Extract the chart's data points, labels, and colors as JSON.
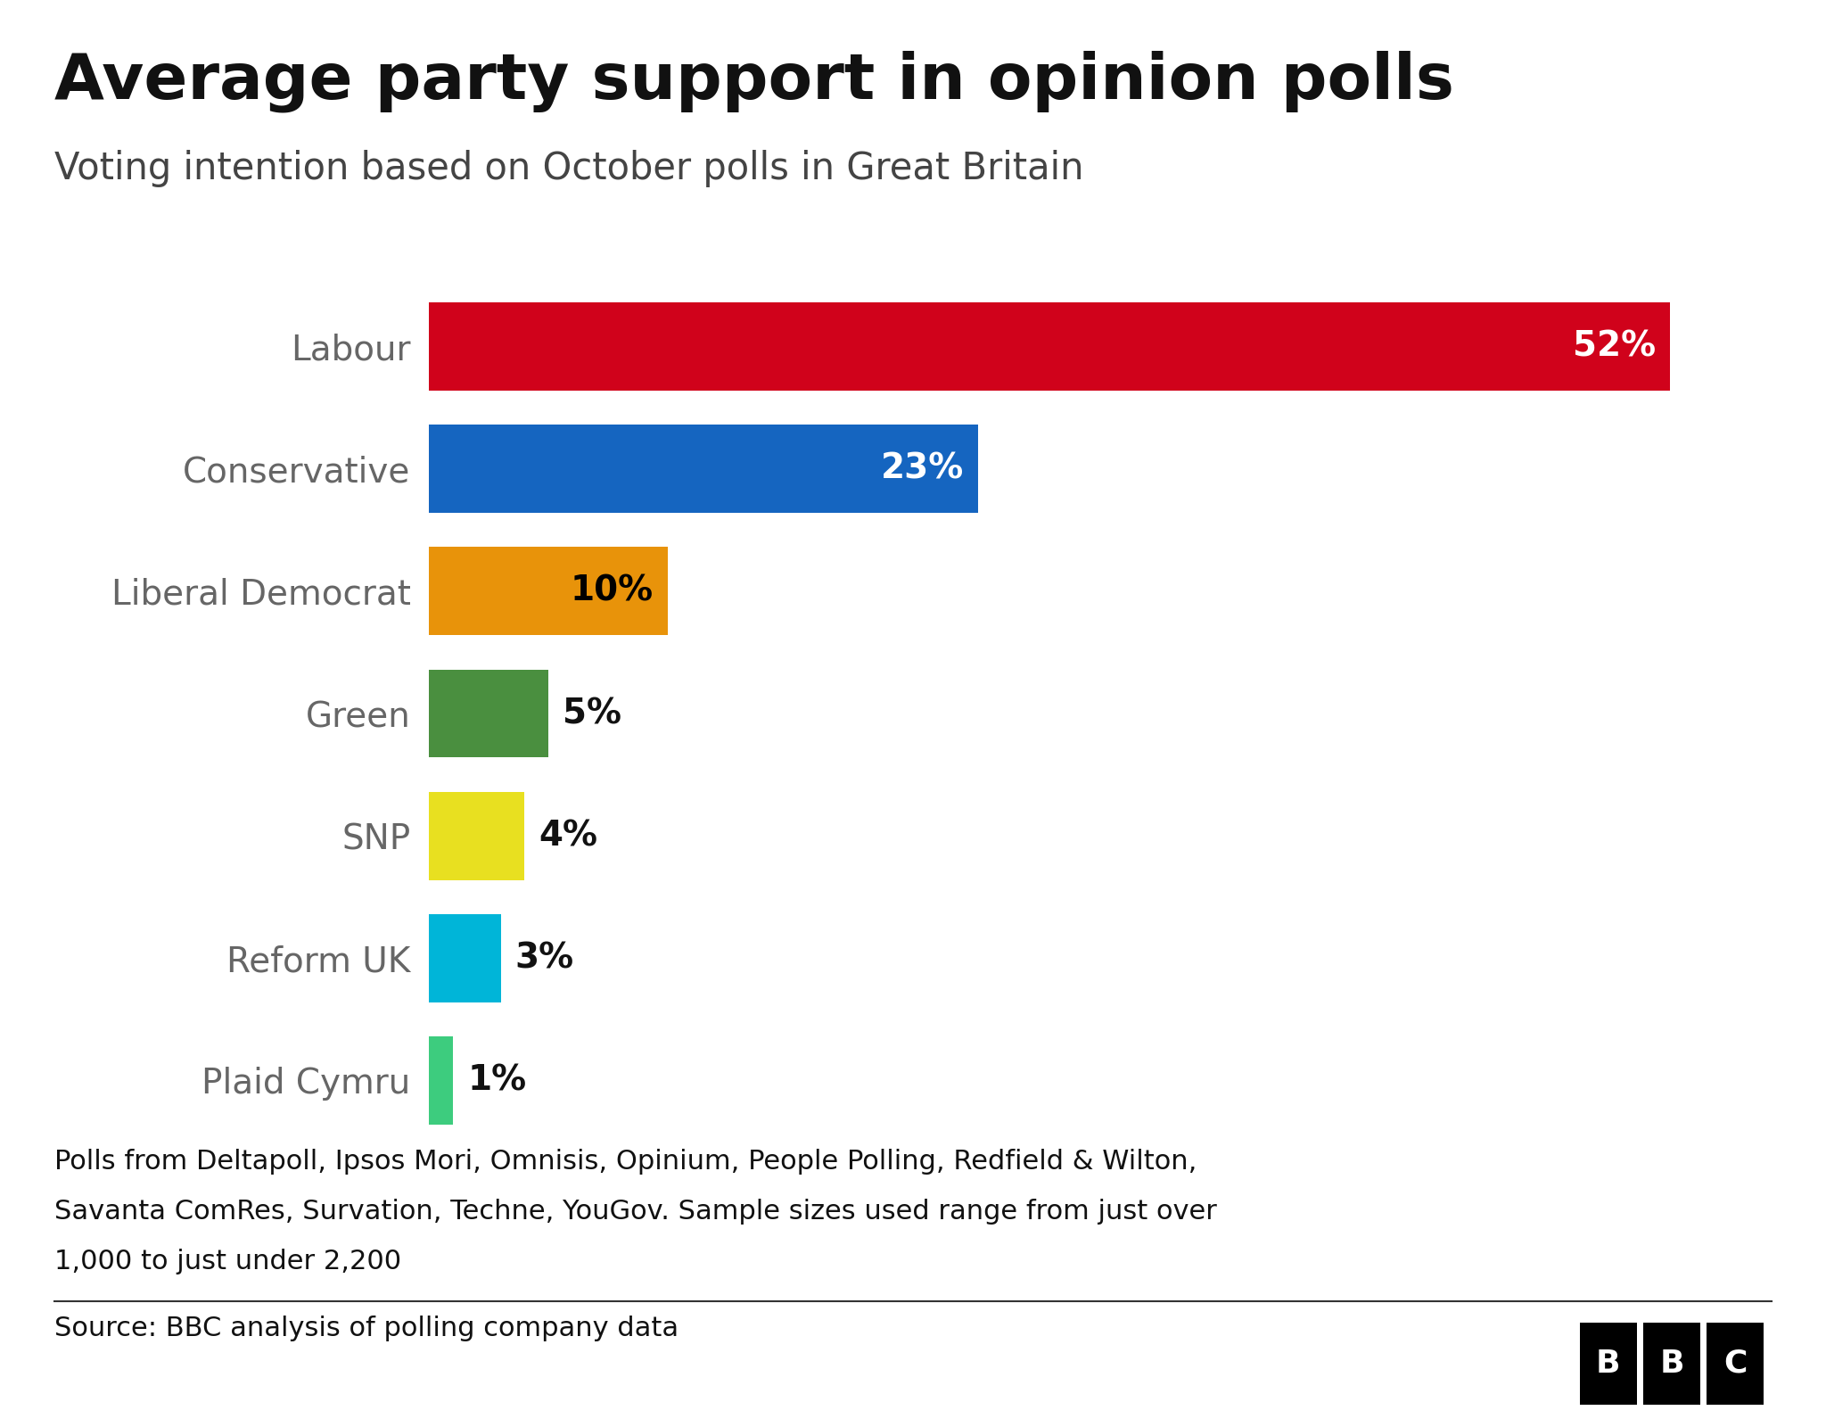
{
  "title": "Average party support in opinion polls",
  "subtitle": "Voting intention based on October polls in Great Britain",
  "parties": [
    "Labour",
    "Conservative",
    "Liberal Democrat",
    "Green",
    "SNP",
    "Reform UK",
    "Plaid Cymru"
  ],
  "values": [
    52,
    23,
    10,
    5,
    4,
    3,
    1
  ],
  "colors": [
    "#d0021b",
    "#1565c0",
    "#e8930a",
    "#4a8f3f",
    "#e8e020",
    "#00b5d8",
    "#3dcc7e"
  ],
  "label_colors": [
    "white",
    "white",
    "black",
    "black",
    "black",
    "black",
    "black"
  ],
  "footnote_line1": "Polls from Deltapoll, Ipsos Mori, Omnisis, Opinium, People Polling, Redfield & Wilton,",
  "footnote_line2": "Savanta ComRes, Survation, Techne, YouGov. Sample sizes used range from just over",
  "footnote_line3": "1,000 to just under 2,200",
  "source": "Source: BBC analysis of polling company data",
  "xlim": [
    0,
    57
  ],
  "background_color": "#ffffff",
  "title_fontsize": 52,
  "subtitle_fontsize": 30,
  "label_fontsize": 28,
  "party_fontsize": 28,
  "footnote_fontsize": 22,
  "source_fontsize": 22
}
